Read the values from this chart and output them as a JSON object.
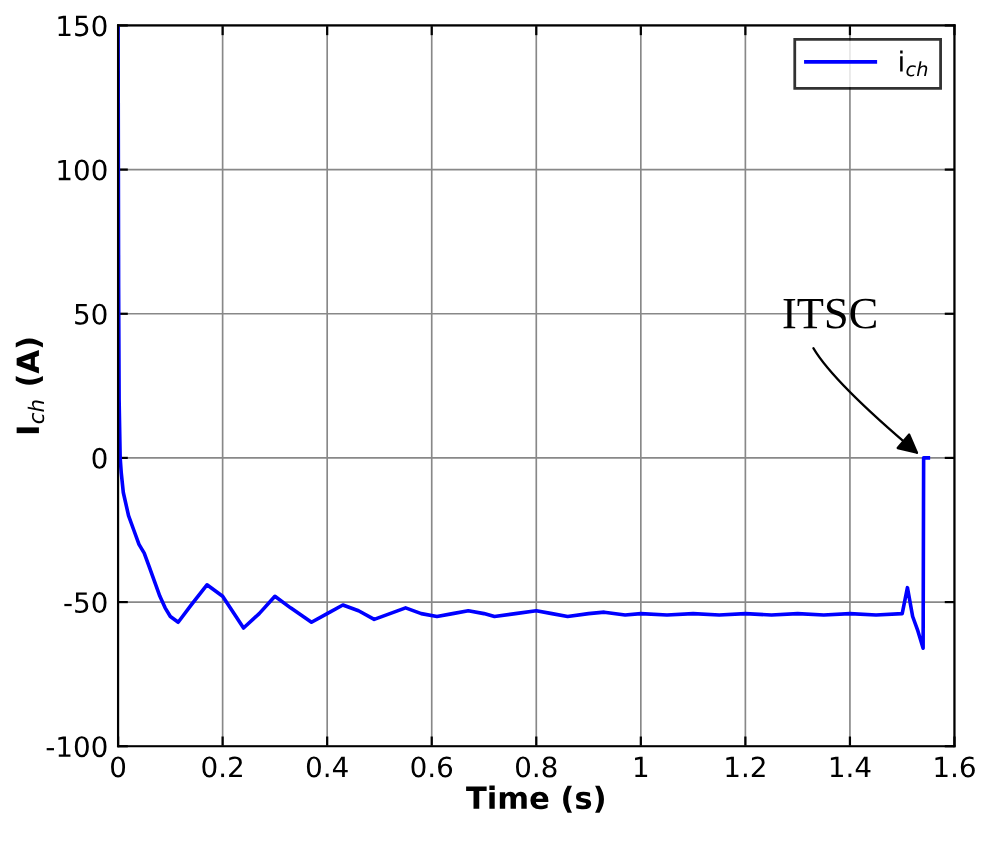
{
  "chart_data": {
    "type": "line",
    "xlabel": "Time (s)",
    "ylabel": "I$_{ch}$ (A)",
    "xlim": [
      0,
      1.6
    ],
    "ylim": [
      -100,
      150
    ],
    "xticks": [
      0,
      0.2,
      0.4,
      0.6,
      0.8,
      1,
      1.2,
      1.4,
      1.6
    ],
    "yticks": [
      -100,
      -50,
      0,
      50,
      100,
      150
    ],
    "grid": true,
    "legend": "top right",
    "line_style": "solid",
    "marker": "none",
    "annotations": [
      {
        "text": "ITSC",
        "x": 1.54,
        "y": 0
      }
    ],
    "series": [
      {
        "name": "i$_{ch}$",
        "color": "#0000ff",
        "x": [
          0,
          0.001,
          0.002,
          0.004,
          0.006,
          0.01,
          0.02,
          0.03,
          0.04,
          0.05,
          0.06,
          0.07,
          0.08,
          0.09,
          0.1,
          0.115,
          0.14,
          0.17,
          0.2,
          0.24,
          0.27,
          0.3,
          0.33,
          0.37,
          0.4,
          0.43,
          0.46,
          0.49,
          0.52,
          0.55,
          0.58,
          0.61,
          0.64,
          0.67,
          0.7,
          0.72,
          0.76,
          0.8,
          0.83,
          0.86,
          0.9,
          0.93,
          0.97,
          1.0,
          1.05,
          1.1,
          1.15,
          1.2,
          1.25,
          1.3,
          1.35,
          1.4,
          1.45,
          1.5,
          1.51,
          1.52,
          1.53,
          1.54,
          1.541,
          1.55
        ],
        "values": [
          150,
          60,
          20,
          0,
          -5,
          -12,
          -20,
          -25,
          -30,
          -33,
          -38,
          -43,
          -48,
          -52,
          -55,
          -57,
          -51,
          -44,
          -48,
          -59,
          -54,
          -48,
          -52,
          -57,
          -54,
          -51,
          -53,
          -56,
          -54,
          -52,
          -54,
          -55,
          -54,
          -53,
          -54,
          -55,
          -54,
          -53,
          -54,
          -55,
          -54,
          -53.5,
          -54.5,
          -54,
          -54.5,
          -54,
          -54.5,
          -54,
          -54.5,
          -54,
          -54.5,
          -54,
          -54.5,
          -54,
          -45,
          -55,
          -60,
          -66,
          0,
          0
        ]
      }
    ]
  }
}
